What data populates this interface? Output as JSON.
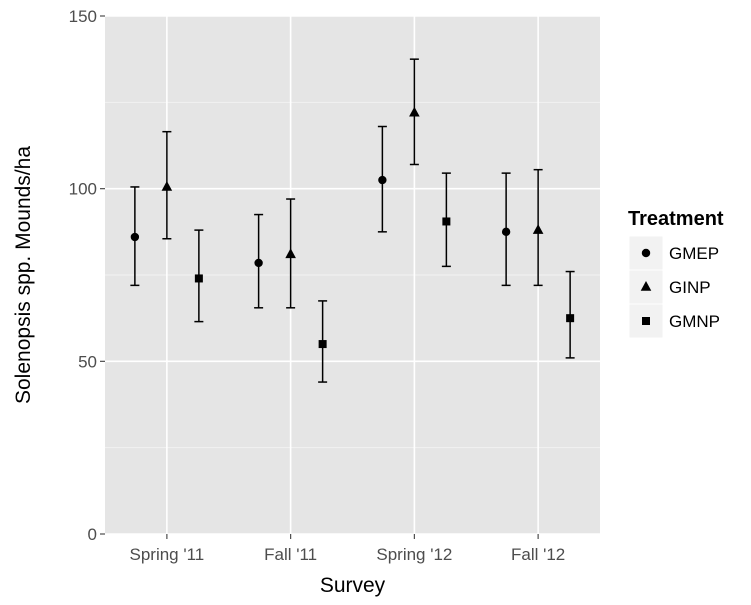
{
  "chart_data": {
    "type": "scatter",
    "xlabel": "Survey",
    "ylabel": "Solenopsis spp. Mounds/ha",
    "categories": [
      "Spring '11",
      "Fall '11",
      "Spring '12",
      "Fall '12"
    ],
    "ylim": [
      0,
      150
    ],
    "yticks": [
      0,
      50,
      100,
      150
    ],
    "grid": true,
    "legend": {
      "title": "Treatment",
      "position": "right"
    },
    "series": [
      {
        "name": "GMEP",
        "shape": "circle",
        "values": [
          86,
          78.5,
          102.5,
          87.5
        ],
        "lower": [
          72,
          65.5,
          87.5,
          72
        ],
        "upper": [
          100.5,
          92.5,
          118,
          104.5
        ]
      },
      {
        "name": "GINP",
        "shape": "triangle",
        "values": [
          100.5,
          81,
          122,
          88
        ],
        "lower": [
          85.5,
          65.5,
          107,
          72
        ],
        "upper": [
          116.5,
          97,
          137.5,
          105.5
        ]
      },
      {
        "name": "GMNP",
        "shape": "square",
        "values": [
          74,
          55,
          90.5,
          62.5
        ],
        "lower": [
          61.5,
          44,
          77.5,
          51
        ],
        "upper": [
          88,
          67.5,
          104.5,
          76
        ]
      }
    ]
  }
}
